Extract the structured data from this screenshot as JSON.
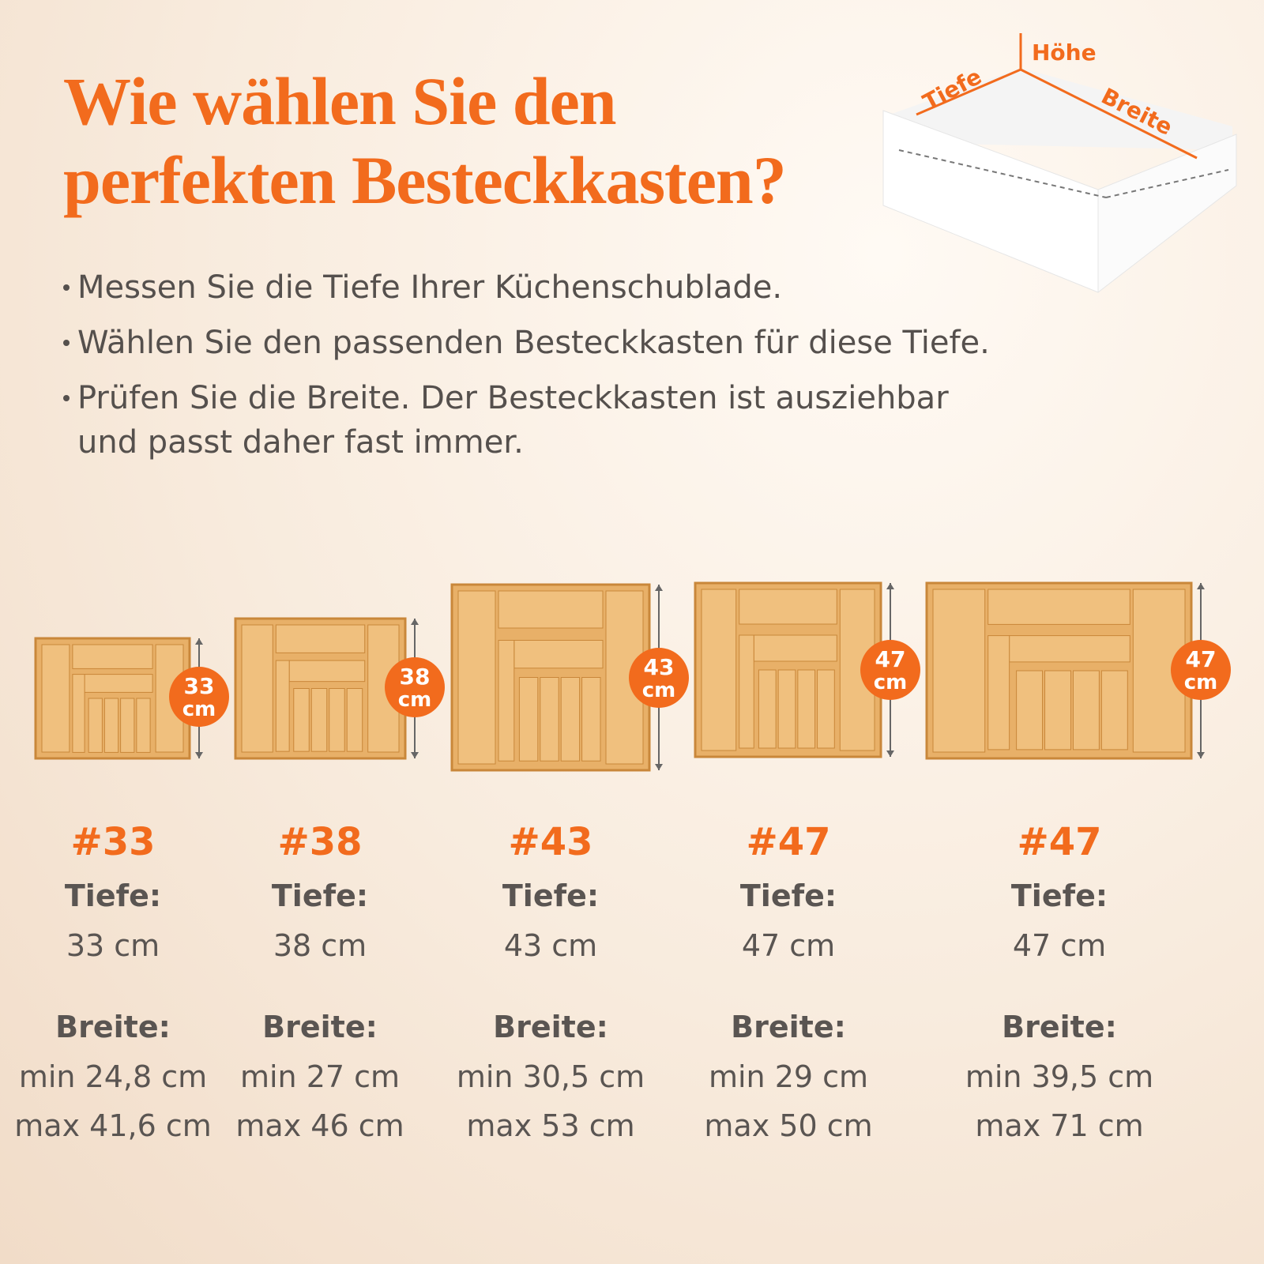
{
  "title": [
    "Wie wählen Sie den",
    "perfekten Besteckkasten?"
  ],
  "drawer_labels": {
    "height": "Höhe",
    "depth": "Tiefe",
    "width": "Breite"
  },
  "bullets": [
    {
      "lines": [
        "Messen Sie die Tiefe Ihrer Küchenschublade."
      ]
    },
    {
      "lines": [
        "Wählen Sie den passenden Besteckkasten für diese Tiefe."
      ]
    },
    {
      "lines": [
        "Prüfen Sie die Breite. Der Besteckkasten ist ausziehbar",
        "und passt daher fast immer."
      ]
    }
  ],
  "products": [
    {
      "badge": [
        "33",
        "cm"
      ],
      "model": "#33",
      "depth_label": "Tiefe:",
      "depth": "33 cm",
      "width_label": "Breite:",
      "width_min": "min 24,8 cm",
      "width_max": "max 41,6 cm"
    },
    {
      "badge": [
        "38",
        "cm"
      ],
      "model": "#38",
      "depth_label": "Tiefe:",
      "depth": "38 cm",
      "width_label": "Breite:",
      "width_min": "min 27 cm",
      "width_max": "max 46 cm"
    },
    {
      "badge": [
        "43",
        "cm"
      ],
      "model": "#43",
      "depth_label": "Tiefe:",
      "depth": "43 cm",
      "width_label": "Breite:",
      "width_min": "min 30,5 cm",
      "width_max": "max 53 cm"
    },
    {
      "badge": [
        "47",
        "cm"
      ],
      "model": "#47",
      "depth_label": "Tiefe:",
      "depth": "47 cm",
      "width_label": "Breite:",
      "width_min": "min 29 cm",
      "width_max": "max 50 cm"
    },
    {
      "badge": [
        "47",
        "cm"
      ],
      "model": "#47",
      "depth_label": "Tiefe:",
      "depth": "47 cm",
      "width_label": "Breite:",
      "width_min": "min 39,5 cm",
      "width_max": "max 71 cm"
    }
  ]
}
